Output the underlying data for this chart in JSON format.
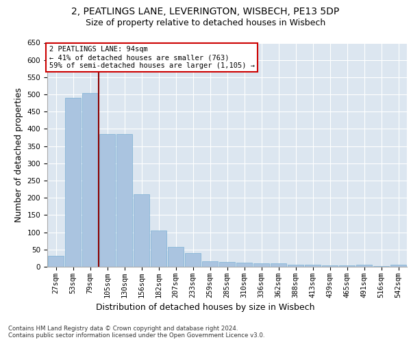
{
  "title_line1": "2, PEATLINGS LANE, LEVERINGTON, WISBECH, PE13 5DP",
  "title_line2": "Size of property relative to detached houses in Wisbech",
  "xlabel": "Distribution of detached houses by size in Wisbech",
  "ylabel": "Number of detached properties",
  "footnote": "Contains HM Land Registry data © Crown copyright and database right 2024.\nContains public sector information licensed under the Open Government Licence v3.0.",
  "categories": [
    "27sqm",
    "53sqm",
    "79sqm",
    "105sqm",
    "130sqm",
    "156sqm",
    "182sqm",
    "207sqm",
    "233sqm",
    "259sqm",
    "285sqm",
    "310sqm",
    "336sqm",
    "362sqm",
    "388sqm",
    "413sqm",
    "439sqm",
    "465sqm",
    "491sqm",
    "516sqm",
    "542sqm"
  ],
  "values": [
    32,
    490,
    505,
    385,
    385,
    210,
    105,
    58,
    40,
    16,
    14,
    11,
    9,
    9,
    6,
    5,
    4,
    3,
    5,
    2,
    5
  ],
  "bar_color": "#aac4e0",
  "bar_edge_color": "#7aafd4",
  "vline_x_index": 2.5,
  "vline_color": "#8b0000",
  "annotation_text": "2 PEATLINGS LANE: 94sqm\n← 41% of detached houses are smaller (763)\n59% of semi-detached houses are larger (1,105) →",
  "annotation_box_color": "#ffffff",
  "annotation_box_edge_color": "#cc0000",
  "ylim": [
    0,
    650
  ],
  "yticks": [
    0,
    50,
    100,
    150,
    200,
    250,
    300,
    350,
    400,
    450,
    500,
    550,
    600,
    650
  ],
  "bg_color": "#dce6f0",
  "fig_bg_color": "#ffffff",
  "title_fontsize": 10,
  "subtitle_fontsize": 9,
  "tick_fontsize": 7.5,
  "label_fontsize": 9
}
